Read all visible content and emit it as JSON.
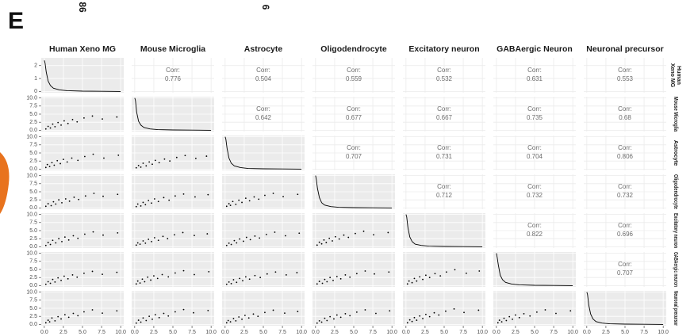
{
  "chart_data": {
    "type": "scatter_matrix",
    "panel_label": "E",
    "fragments": [
      "86",
      "6"
    ],
    "variables": [
      "Human Xeno MG",
      "Mouse Microglia",
      "Astrocyte",
      "Oligodendrocyte",
      "Excitatory neuron",
      "GABAergic Neuron",
      "Neuronal precursor"
    ],
    "row_labels": [
      "Human Xeno MG",
      "Mouse Microglia",
      "Astrocyte",
      "Oligodendrocyte",
      "Excitatory neuron",
      "GABAergic neuron",
      "Neuronal precursor"
    ],
    "xlim": [
      -0.4,
      10.4
    ],
    "xticks": [
      {
        "value": 0,
        "label": "0.0"
      },
      2.5,
      {
        "value": 5,
        "label": "5.0"
      },
      7.5,
      {
        "value": 10,
        "label": "10.0"
      }
    ],
    "ylim": [
      -0.4,
      10.4
    ],
    "yticks": [
      {
        "value": 0,
        "label": "0.0"
      },
      2.5,
      {
        "value": 5,
        "label": "5.0"
      },
      7.5,
      {
        "value": 10,
        "label": "10.0"
      }
    ],
    "density_ylim": [
      -0.1,
      2.6
    ],
    "density_yticks": [
      0,
      1,
      2
    ],
    "corr_label": "Corr:",
    "correlations": [
      [
        0.776,
        0.504,
        0.559,
        0.532,
        0.631,
        0.553
      ],
      [
        0.642,
        0.677,
        0.667,
        0.735,
        0.68
      ],
      [
        0.707,
        0.731,
        0.704,
        0.806
      ],
      [
        0.712,
        0.732,
        0.732
      ],
      [
        0.822,
        0.696
      ],
      [
        0.707
      ],
      []
    ],
    "diagonal": [
      {
        "x": [
          0,
          0.1,
          0.25,
          0.5,
          0.8,
          1.2,
          2,
          3,
          5,
          7.5,
          10
        ],
        "y": [
          2.4,
          2.2,
          1.5,
          0.8,
          0.45,
          0.25,
          0.12,
          0.06,
          0.02,
          0.01,
          0
        ]
      },
      {
        "x": [
          0,
          0.1,
          0.25,
          0.5,
          0.8,
          1.2,
          2,
          3,
          5,
          7.5,
          10
        ],
        "y": [
          2.5,
          2.3,
          1.4,
          0.7,
          0.4,
          0.22,
          0.1,
          0.05,
          0.02,
          0.01,
          0
        ]
      },
      {
        "x": [
          0,
          0.1,
          0.25,
          0.5,
          0.8,
          1.2,
          2,
          3,
          5,
          7.5,
          10
        ],
        "y": [
          2.5,
          2.3,
          1.6,
          0.85,
          0.45,
          0.25,
          0.12,
          0.05,
          0.02,
          0.01,
          0
        ]
      },
      {
        "x": [
          0,
          0.1,
          0.25,
          0.5,
          0.8,
          1.2,
          2,
          3,
          5,
          7.5,
          10
        ],
        "y": [
          2.5,
          2.2,
          1.5,
          0.8,
          0.4,
          0.22,
          0.1,
          0.05,
          0.02,
          0.01,
          0
        ]
      },
      {
        "x": [
          0,
          0.1,
          0.25,
          0.5,
          0.8,
          1.2,
          2,
          3,
          5,
          7.5,
          10
        ],
        "y": [
          2.5,
          2.3,
          1.5,
          0.75,
          0.4,
          0.2,
          0.1,
          0.05,
          0.02,
          0.01,
          0
        ]
      },
      {
        "x": [
          0,
          0.1,
          0.25,
          0.5,
          0.8,
          1.2,
          2,
          3,
          5,
          7.5,
          10
        ],
        "y": [
          2.5,
          2.2,
          1.6,
          0.8,
          0.45,
          0.25,
          0.12,
          0.06,
          0.02,
          0.01,
          0
        ]
      },
      {
        "x": [
          0,
          0.1,
          0.25,
          0.5,
          0.8,
          1.2,
          2,
          3,
          5,
          7.5,
          10
        ],
        "y": [
          2.5,
          2.3,
          1.5,
          0.8,
          0.42,
          0.22,
          0.1,
          0.05,
          0.02,
          0.01,
          0
        ]
      }
    ],
    "lower": [
      [],
      [
        {
          "x": [
            0.2,
            0.5,
            0.8,
            1.1,
            1.4,
            1.8,
            2.2,
            2.6,
            3.1,
            3.7,
            4.3,
            5.2,
            6.3,
            7.6,
            9.5
          ],
          "y": [
            0.4,
            1.2,
            0.7,
            1.9,
            1.1,
            2.4,
            1.6,
            2.9,
            2.1,
            3.3,
            2.6,
            3.8,
            4.4,
            3.5,
            4.1
          ]
        }
      ],
      [
        {
          "x": [
            0.2,
            0.4,
            0.7,
            1.0,
            1.3,
            1.7,
            2.1,
            2.5,
            3.0,
            3.6,
            4.4,
            5.3,
            6.4,
            7.8,
            9.7
          ],
          "y": [
            0.5,
            1.4,
            0.8,
            2.0,
            1.2,
            2.6,
            1.7,
            3.0,
            2.2,
            3.4,
            2.7,
            3.9,
            4.6,
            3.4,
            4.3
          ]
        },
        {
          "x": [
            0.2,
            0.5,
            0.8,
            1.1,
            1.5,
            1.9,
            2.3,
            2.7,
            3.2,
            3.9,
            4.6,
            5.5,
            6.6,
            8.0,
            9.4
          ],
          "y": [
            0.4,
            1.1,
            0.6,
            1.8,
            1.0,
            2.2,
            1.5,
            2.7,
            2.0,
            3.1,
            2.5,
            3.6,
            4.2,
            3.3,
            4.0
          ]
        }
      ],
      [
        {
          "x": [
            0.2,
            0.5,
            0.9,
            1.2,
            1.5,
            1.9,
            2.3,
            2.8,
            3.3,
            3.9,
            4.5,
            5.4,
            6.5,
            7.7,
            9.6
          ],
          "y": [
            0.5,
            1.3,
            0.7,
            1.9,
            1.2,
            2.5,
            1.6,
            2.8,
            2.1,
            3.3,
            2.6,
            3.7,
            4.5,
            3.6,
            4.2
          ]
        },
        {
          "x": [
            0.2,
            0.4,
            0.8,
            1.1,
            1.4,
            1.8,
            2.2,
            2.6,
            3.1,
            3.8,
            4.5,
            5.3,
            6.4,
            7.9,
            9.6
          ],
          "y": [
            0.4,
            1.2,
            0.6,
            1.7,
            1.0,
            2.3,
            1.5,
            2.8,
            2.0,
            3.2,
            2.4,
            3.7,
            4.3,
            3.4,
            4.1
          ]
        },
        {
          "x": [
            0.2,
            0.5,
            0.7,
            1.0,
            1.4,
            1.8,
            2.2,
            2.7,
            3.2,
            3.8,
            4.4,
            5.2,
            6.3,
            7.6,
            9.5
          ],
          "y": [
            0.5,
            1.3,
            0.8,
            2.0,
            1.1,
            2.4,
            1.7,
            3.0,
            2.2,
            3.4,
            2.7,
            3.9,
            4.5,
            3.5,
            4.2
          ]
        }
      ],
      [
        {
          "x": [
            0.2,
            0.5,
            0.8,
            1.1,
            1.5,
            1.9,
            2.3,
            2.7,
            3.2,
            3.8,
            4.4,
            5.3,
            6.4,
            7.7,
            9.6
          ],
          "y": [
            0.4,
            1.3,
            0.7,
            2.0,
            1.2,
            2.5,
            1.6,
            3.0,
            2.1,
            3.4,
            2.6,
            3.9,
            4.6,
            3.6,
            4.3
          ]
        },
        {
          "x": [
            0.2,
            0.4,
            0.7,
            1.1,
            1.4,
            1.8,
            2.2,
            2.6,
            3.1,
            3.7,
            4.3,
            5.2,
            6.3,
            7.8,
            9.5
          ],
          "y": [
            0.5,
            1.2,
            0.8,
            1.8,
            1.1,
            2.3,
            1.6,
            2.8,
            2.0,
            3.2,
            2.5,
            3.7,
            4.4,
            3.5,
            4.0
          ]
        },
        {
          "x": [
            0.2,
            0.5,
            0.8,
            1.2,
            1.5,
            1.9,
            2.4,
            2.8,
            3.3,
            3.9,
            4.5,
            5.4,
            6.5,
            7.9,
            9.7
          ],
          "y": [
            0.4,
            1.1,
            0.7,
            1.9,
            1.2,
            2.4,
            1.7,
            2.9,
            2.2,
            3.3,
            2.7,
            3.8,
            4.5,
            3.4,
            4.2
          ]
        },
        {
          "x": [
            0.2,
            0.5,
            0.8,
            1.1,
            1.4,
            1.8,
            2.2,
            2.6,
            3.1,
            3.7,
            4.3,
            5.2,
            6.3,
            7.6,
            9.5
          ],
          "y": [
            0.5,
            1.4,
            0.9,
            2.1,
            1.3,
            2.6,
            1.8,
            3.1,
            2.4,
            3.6,
            2.9,
            4.1,
            4.8,
            3.7,
            4.4
          ]
        }
      ],
      [
        {
          "x": [
            0.2,
            0.5,
            0.8,
            1.1,
            1.4,
            1.8,
            2.2,
            2.6,
            3.1,
            3.7,
            4.3,
            5.2,
            6.3,
            7.6,
            9.5
          ],
          "y": [
            0.4,
            1.2,
            0.7,
            1.9,
            1.1,
            2.4,
            1.6,
            2.9,
            2.1,
            3.3,
            2.6,
            3.8,
            4.4,
            3.5,
            4.1
          ]
        },
        {
          "x": [
            0.2,
            0.4,
            0.7,
            1.0,
            1.3,
            1.7,
            2.1,
            2.5,
            3.0,
            3.6,
            4.4,
            5.3,
            6.4,
            7.8,
            9.7
          ],
          "y": [
            0.5,
            1.4,
            0.8,
            2.0,
            1.2,
            2.6,
            1.7,
            3.0,
            2.2,
            3.4,
            2.7,
            3.9,
            4.6,
            3.4,
            4.3
          ]
        },
        {
          "x": [
            0.2,
            0.5,
            0.8,
            1.1,
            1.5,
            1.9,
            2.3,
            2.7,
            3.2,
            3.9,
            4.6,
            5.5,
            6.6,
            8.0,
            9.4
          ],
          "y": [
            0.4,
            1.1,
            0.6,
            1.8,
            1.0,
            2.2,
            1.5,
            2.7,
            2.0,
            3.1,
            2.5,
            3.6,
            4.2,
            3.3,
            4.0
          ]
        },
        {
          "x": [
            0.2,
            0.5,
            0.9,
            1.2,
            1.5,
            1.9,
            2.3,
            2.8,
            3.3,
            3.9,
            4.5,
            5.4,
            6.5,
            7.7,
            9.6
          ],
          "y": [
            0.5,
            1.3,
            0.7,
            1.9,
            1.2,
            2.5,
            1.6,
            2.8,
            2.1,
            3.3,
            2.6,
            3.7,
            4.5,
            3.6,
            4.2
          ]
        },
        {
          "x": [
            0.2,
            0.4,
            0.8,
            1.1,
            1.4,
            1.8,
            2.2,
            2.6,
            3.1,
            3.8,
            4.5,
            5.3,
            6.4,
            7.9,
            9.6
          ],
          "y": [
            0.5,
            1.4,
            0.9,
            2.2,
            1.4,
            2.7,
            1.9,
            3.2,
            2.5,
            3.7,
            3.0,
            4.2,
            4.9,
            3.8,
            4.5
          ]
        }
      ],
      [
        {
          "x": [
            0.2,
            0.5,
            0.7,
            1.0,
            1.4,
            1.8,
            2.2,
            2.7,
            3.2,
            3.8,
            4.4,
            5.2,
            6.3,
            7.6,
            9.5
          ],
          "y": [
            0.5,
            1.3,
            0.8,
            2.0,
            1.1,
            2.4,
            1.7,
            3.0,
            2.2,
            3.4,
            2.7,
            3.9,
            4.5,
            3.5,
            4.2
          ]
        },
        {
          "x": [
            0.2,
            0.5,
            0.8,
            1.1,
            1.5,
            1.9,
            2.3,
            2.7,
            3.2,
            3.8,
            4.4,
            5.3,
            6.4,
            7.7,
            9.6
          ],
          "y": [
            0.4,
            1.3,
            0.7,
            2.0,
            1.2,
            2.5,
            1.6,
            3.0,
            2.1,
            3.4,
            2.6,
            3.9,
            4.6,
            3.6,
            4.3
          ]
        },
        {
          "x": [
            0.2,
            0.4,
            0.7,
            1.1,
            1.4,
            1.8,
            2.2,
            2.6,
            3.1,
            3.7,
            4.3,
            5.2,
            6.3,
            7.8,
            9.5
          ],
          "y": [
            0.5,
            1.2,
            0.8,
            1.8,
            1.1,
            2.3,
            1.6,
            2.8,
            2.0,
            3.2,
            2.5,
            3.7,
            4.4,
            3.5,
            4.0
          ]
        },
        {
          "x": [
            0.2,
            0.5,
            0.8,
            1.2,
            1.5,
            1.9,
            2.4,
            2.8,
            3.3,
            3.9,
            4.5,
            5.4,
            6.5,
            7.9,
            9.7
          ],
          "y": [
            0.4,
            1.1,
            0.7,
            1.9,
            1.2,
            2.4,
            1.7,
            2.9,
            2.2,
            3.3,
            2.7,
            3.8,
            4.5,
            3.4,
            4.2
          ]
        },
        {
          "x": [
            0.2,
            0.5,
            0.8,
            1.1,
            1.4,
            1.8,
            2.2,
            2.6,
            3.1,
            3.7,
            4.3,
            5.2,
            6.3,
            7.6,
            9.5
          ],
          "y": [
            0.5,
            1.4,
            0.9,
            2.1,
            1.3,
            2.6,
            1.8,
            3.1,
            2.4,
            3.6,
            2.9,
            4.1,
            4.8,
            3.7,
            4.4
          ]
        },
        {
          "x": [
            0.2,
            0.4,
            0.7,
            1.0,
            1.3,
            1.7,
            2.1,
            2.5,
            3.0,
            3.6,
            4.4,
            5.3,
            6.4,
            7.8,
            9.7
          ],
          "y": [
            0.5,
            1.3,
            0.8,
            1.9,
            1.2,
            2.4,
            1.6,
            2.9,
            2.1,
            3.3,
            2.6,
            3.8,
            4.5,
            3.4,
            4.2
          ]
        }
      ]
    ]
  }
}
